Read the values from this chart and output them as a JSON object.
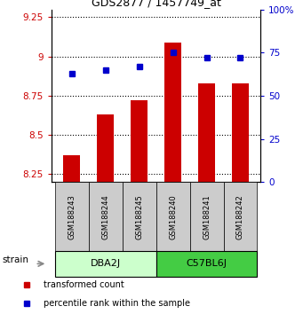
{
  "title": "GDS2877 / 1457749_at",
  "samples": [
    "GSM188243",
    "GSM188244",
    "GSM188245",
    "GSM188240",
    "GSM188241",
    "GSM188242"
  ],
  "transformed_counts": [
    8.37,
    8.63,
    8.72,
    9.09,
    8.83,
    8.83
  ],
  "percentile_ranks": [
    63,
    65,
    67,
    75,
    72,
    72
  ],
  "ylim_left": [
    8.2,
    9.3
  ],
  "ylim_right": [
    0,
    100
  ],
  "yticks_left": [
    8.25,
    8.5,
    8.75,
    9.0,
    9.25
  ],
  "yticks_right": [
    0,
    25,
    50,
    75,
    100
  ],
  "ytick_labels_left": [
    "8.25",
    "8.5",
    "8.75",
    "9",
    "9.25"
  ],
  "ytick_labels_right": [
    "0",
    "25",
    "50",
    "75",
    "100%"
  ],
  "groups": [
    {
      "name": "DBA2J",
      "indices": [
        0,
        1,
        2
      ],
      "color": "#ccffcc"
    },
    {
      "name": "C57BL6J",
      "indices": [
        3,
        4,
        5
      ],
      "color": "#44cc44"
    }
  ],
  "bar_color": "#cc0000",
  "dot_color": "#0000cc",
  "bar_bottom": 8.2,
  "bar_width": 0.5,
  "label_bg_color": "#cccccc",
  "strain_label": "strain",
  "legend_items": [
    {
      "color": "#cc0000",
      "label": "transformed count"
    },
    {
      "color": "#0000cc",
      "label": "percentile rank within the sample"
    }
  ]
}
